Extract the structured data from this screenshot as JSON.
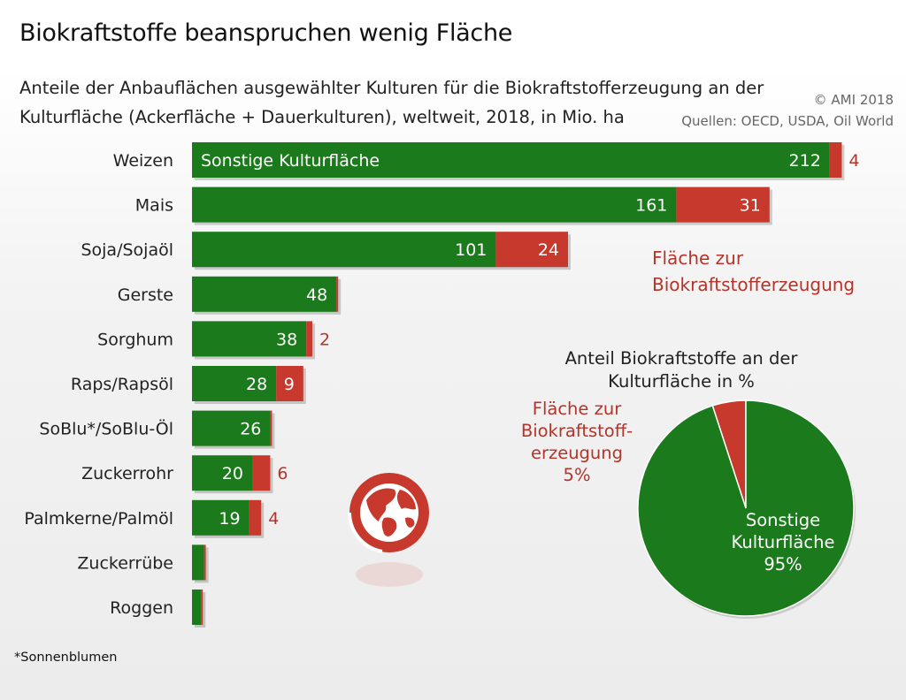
{
  "title": "Biokraftstoffe beanspruchen wenig Fläche",
  "subtitle_line1": "Anteile der Anbauflächen ausgewählter Kulturen für die Biokraftstofferzeugung an der",
  "subtitle_line2": "Kulturfläche (Ackerfläche + Dauerkulturen), weltweit, 2018, in Mio. ha",
  "copyright": "© AMI 2018",
  "sources": "Quellen: OECD, USDA, Oil World",
  "footnote": "*Sonnenblumen",
  "colors": {
    "other": "#1b7a1b",
    "biofuel": "#c6392c",
    "biofuel_text": "#b5342a"
  },
  "icon": "globe-icon",
  "chart_data": [
    {
      "type": "bar",
      "orientation": "horizontal",
      "stacked": true,
      "categories": [
        "Weizen",
        "Mais",
        "Soja/Sojaöl",
        "Gerste",
        "Sorghum",
        "Raps/Rapsöl",
        "SoBlu*/SoBlu-Öl",
        "Zuckerrohr",
        "Palmkerne/Palmöl",
        "Zuckerrübe",
        "Roggen"
      ],
      "series": [
        {
          "name": "Sonstige Kulturfläche",
          "color": "#1b7a1b",
          "values": [
            212,
            161,
            101,
            48,
            38,
            28,
            26,
            20,
            19,
            4,
            3
          ]
        },
        {
          "name": "Fläche zur Biokraftstofferzeugung",
          "color": "#c6392c",
          "values": [
            4,
            31,
            24,
            0.3,
            2,
            9,
            0.5,
            6,
            4,
            0.3,
            0.3
          ]
        }
      ],
      "labels": {
        "other": [
          "212",
          "161",
          "101",
          "48",
          "38",
          "28",
          "26",
          "20",
          "19",
          "",
          ""
        ],
        "biofuel": [
          "4",
          "31",
          "24",
          "",
          "2",
          "9",
          "",
          "6",
          "4",
          "",
          ""
        ]
      },
      "legend_in_bar": "Sonstige Kulturfläche",
      "legend_biofuel_line1": "Fläche zur",
      "legend_biofuel_line2": "Biokraftstofferzeugung"
    },
    {
      "type": "pie",
      "title_line1": "Anteil Biokraftstoffe an der",
      "title_line2": "Kulturfläche in %",
      "slices": [
        {
          "name": "Fläche zur Biokraftstofferzeugung",
          "value": 5,
          "color": "#c6392c"
        },
        {
          "name": "Sonstige Kulturfläche",
          "value": 95,
          "color": "#1b7a1b"
        }
      ],
      "biofuel_label": [
        "Fläche zur",
        "Biokraftstoff-",
        "erzeugung",
        "5%"
      ],
      "other_label": [
        "Sonstige",
        "Kulturfläche",
        "95%"
      ]
    }
  ]
}
